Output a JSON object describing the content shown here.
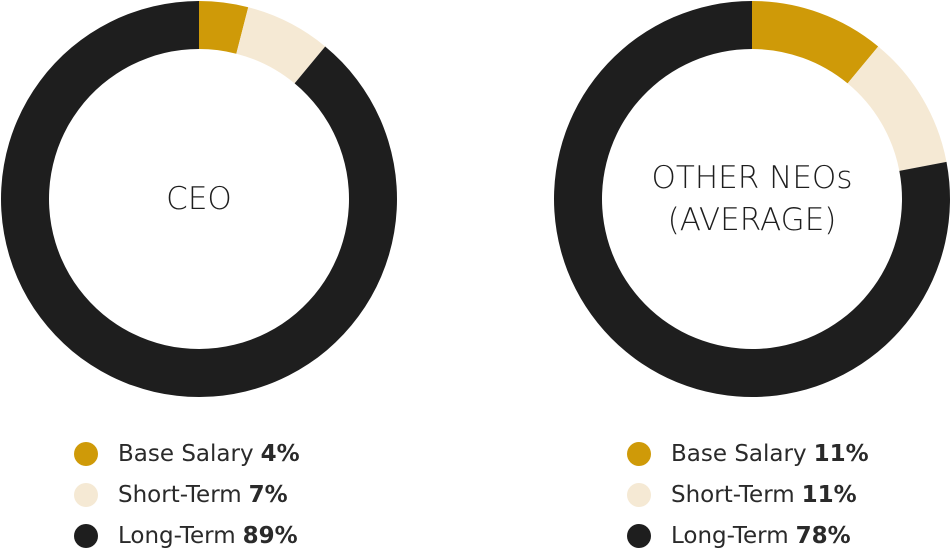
{
  "colors": {
    "base_salary": "#CF9A08",
    "short_term": "#F5E9D4",
    "long_term": "#1E1E1E"
  },
  "chart_data": [
    {
      "type": "pie",
      "title_lines": [
        "CEO"
      ],
      "categories": [
        "Base Salary",
        "Short-Term",
        "Long-Term"
      ],
      "values": [
        4,
        7,
        89
      ],
      "value_labels": [
        "4%",
        "7%",
        "89%"
      ],
      "colors": [
        "#CF9A08",
        "#F5E9D4",
        "#1E1E1E"
      ],
      "legend": "bottom"
    },
    {
      "type": "pie",
      "title_lines": [
        "OTHER NEOs",
        "(AVERAGE)"
      ],
      "categories": [
        "Base Salary",
        "Short-Term",
        "Long-Term"
      ],
      "values": [
        11,
        11,
        78
      ],
      "value_labels": [
        "11%",
        "11%",
        "78%"
      ],
      "colors": [
        "#CF9A08",
        "#F5E9D4",
        "#1E1E1E"
      ],
      "legend": "bottom"
    }
  ]
}
